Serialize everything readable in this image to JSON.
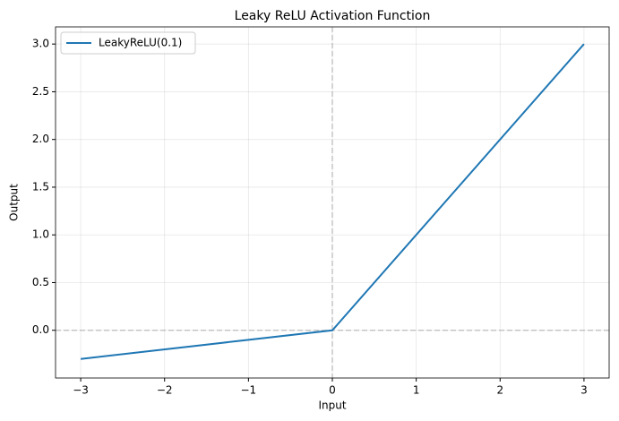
{
  "chart_data": {
    "type": "line",
    "title": "Leaky ReLU Activation Function",
    "x_label": "Input",
    "y_label": "Output",
    "x": [
      -3,
      0,
      3
    ],
    "series": [
      {
        "name": "LeakyReLU(0.1)",
        "color": "#1f77b4",
        "values": [
          -0.3,
          0,
          3
        ]
      }
    ],
    "xlim": [
      -3.3,
      3.3
    ],
    "ylim": [
      -0.5,
      3.18
    ],
    "xticks": [
      {
        "value": -3,
        "label": "−3"
      },
      {
        "value": -2,
        "label": "−2"
      },
      {
        "value": -1,
        "label": "−1"
      },
      0,
      1,
      2,
      3
    ],
    "yticks": [
      {
        "value": 0,
        "label": "0.0"
      },
      {
        "value": 0.5,
        "label": "0.5"
      },
      {
        "value": 1,
        "label": "1.0"
      },
      {
        "value": 1.5,
        "label": "1.5"
      },
      {
        "value": 2,
        "label": "2.0"
      },
      {
        "value": 2.5,
        "label": "2.5"
      },
      {
        "value": 3,
        "label": "3.0"
      }
    ],
    "hlines": [
      0
    ],
    "vlines": [
      0
    ],
    "grid": true,
    "legend": "upper-left"
  }
}
